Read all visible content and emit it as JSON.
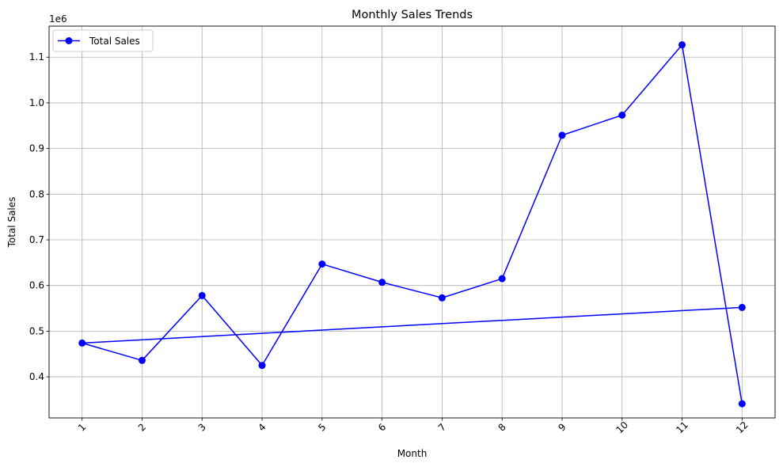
{
  "chart_data": {
    "type": "line",
    "title": "Monthly Sales Trends",
    "xlabel": "Month",
    "ylabel": "Total Sales",
    "y_offset_label": "1e6",
    "y_scale_factor": 1000000,
    "xlim": [
      0.45,
      12.55
    ],
    "ylim": [
      310000,
      1168000
    ],
    "x_ticks": [
      1,
      2,
      3,
      4,
      5,
      6,
      7,
      8,
      9,
      10,
      11,
      12
    ],
    "x_tick_rotation": 45,
    "y_ticks": [
      400000,
      500000,
      600000,
      700000,
      800000,
      900000,
      1000000,
      1100000
    ],
    "y_tick_labels": [
      "0.4",
      "0.5",
      "0.6",
      "0.7",
      "0.8",
      "0.9",
      "1.0",
      "1.1"
    ],
    "grid": true,
    "legend_position": "top-left",
    "series": [
      {
        "name": "Total Sales",
        "color": "#0000ff",
        "marker": "circle",
        "x": [
          12,
          1,
          2,
          3,
          4,
          5,
          6,
          7,
          8,
          9,
          10,
          11,
          12
        ],
        "y": [
          552000,
          474000,
          436000,
          578000,
          425000,
          647000,
          607000,
          573000,
          615000,
          929000,
          973000,
          1127000,
          341000
        ]
      }
    ]
  }
}
